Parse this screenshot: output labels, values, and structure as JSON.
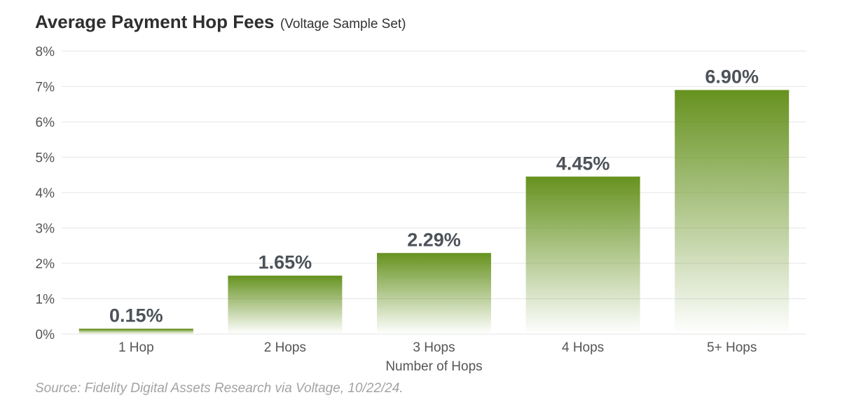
{
  "chart_data": {
    "type": "bar",
    "title": "Average Payment Hop Fees",
    "subtitle": "(Voltage Sample Set)",
    "categories": [
      "1 Hop",
      "2 Hops",
      "3 Hops",
      "4 Hops",
      "5+ Hops"
    ],
    "values": [
      0.15,
      1.65,
      2.29,
      4.45,
      6.9
    ],
    "data_labels": [
      "0.15%",
      "1.65%",
      "2.29%",
      "4.45%",
      "6.90%"
    ],
    "xlabel": "Number of Hops",
    "ylabel": "",
    "ylim": [
      0,
      8
    ],
    "yticks": [
      0,
      1,
      2,
      3,
      4,
      5,
      6,
      7,
      8
    ],
    "ytick_labels": [
      "0%",
      "1%",
      "2%",
      "3%",
      "4%",
      "5%",
      "6%",
      "7%",
      "8%"
    ],
    "grid": true,
    "legend": "none",
    "bar_color": "#66921f",
    "source": "Source: Fidelity Digital Assets Research via Voltage, 10/22/24."
  }
}
